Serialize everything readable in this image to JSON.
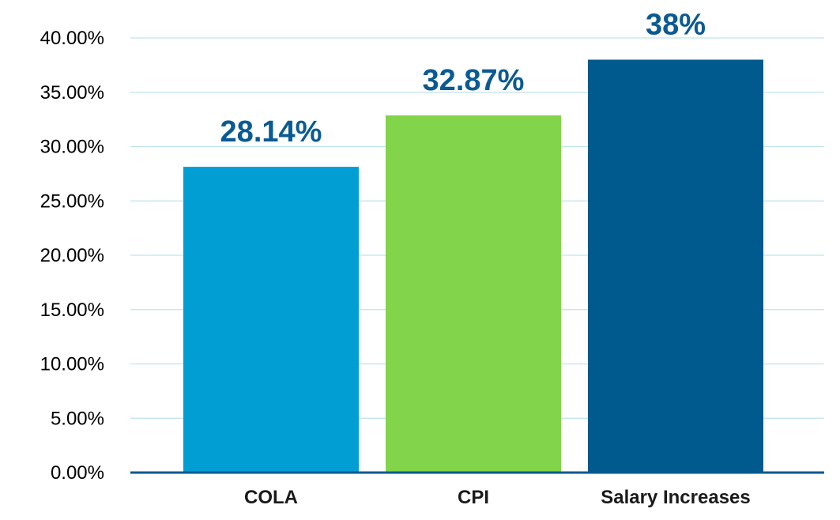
{
  "chart_data": {
    "type": "bar",
    "categories": [
      "COLA",
      "CPI",
      "Salary Increases"
    ],
    "values": [
      28.14,
      32.87,
      38
    ],
    "data_labels": [
      "28.14%",
      "32.87%",
      "38%"
    ],
    "title": "",
    "xlabel": "",
    "ylabel": "",
    "ylim": [
      0,
      40
    ],
    "y_ticks": [
      0,
      5,
      10,
      15,
      20,
      25,
      30,
      35,
      40
    ],
    "y_tick_labels": [
      "0.00%",
      "5.00%",
      "10.00%",
      "15.00%",
      "20.00%",
      "25.00%",
      "30.00%",
      "35.00%",
      "40.00%"
    ],
    "grid": true,
    "legend": "none",
    "bar_colors": [
      "#009ED3",
      "#82D44A",
      "#005A8E"
    ],
    "data_label_color": "#0A5A93",
    "gridline_color": "#BFE3EA",
    "axis_color": "#005A8E"
  }
}
